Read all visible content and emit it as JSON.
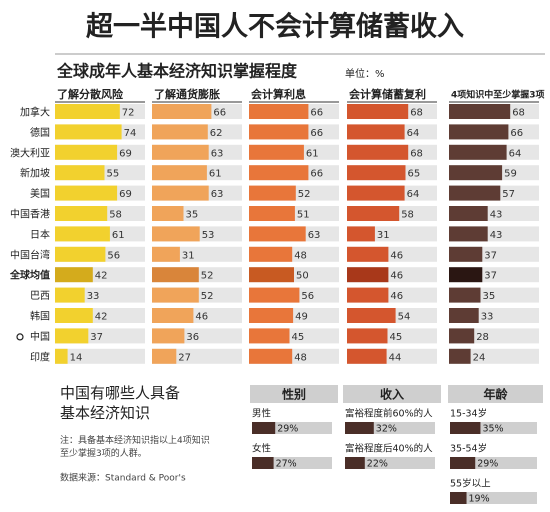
{
  "chart_data": [
    {
      "type": "bar",
      "title": "超一半中国人不会计算储蓄收入",
      "subtitle": "全球成年人基本经济知识掌握程度",
      "unit": "单位：%",
      "categories": [
        "加拿大",
        "德国",
        "澳大利亚",
        "新加坡",
        "美国",
        "中国香港",
        "日本",
        "中国台湾",
        "全球均值",
        "巴西",
        "韩国",
        "中国",
        "印度"
      ],
      "highlight": 8,
      "xlim": [
        0,
        100
      ],
      "track_color": "#e6e6e6",
      "series": [
        {
          "name": "了解分散风险",
          "color": "#f2d12e",
          "highlight_color": "#d4ab1c",
          "values": [
            72,
            74,
            69,
            55,
            69,
            58,
            61,
            56,
            42,
            33,
            42,
            37,
            14
          ]
        },
        {
          "name": "了解通货膨胀",
          "color": "#f0a45a",
          "highlight_color": "#d9853a",
          "values": [
            66,
            62,
            63,
            61,
            63,
            35,
            53,
            31,
            52,
            52,
            46,
            36,
            27
          ]
        },
        {
          "name": "会计算利息",
          "color": "#e8763a",
          "highlight_color": "#c85a22",
          "values": [
            66,
            66,
            61,
            66,
            52,
            51,
            63,
            48,
            50,
            56,
            49,
            45,
            48
          ]
        },
        {
          "name": "会计算储蓄复利",
          "color": "#d4562e",
          "highlight_color": "#a8381a",
          "values": [
            68,
            64,
            68,
            65,
            64,
            58,
            31,
            46,
            46,
            46,
            54,
            45,
            44
          ]
        },
        {
          "name": "4项知识中至少掌握3项",
          "color": "#5e3c34",
          "highlight_color": "#2a1612",
          "values": [
            68,
            66,
            64,
            59,
            57,
            43,
            43,
            37,
            37,
            35,
            33,
            28,
            24
          ]
        }
      ]
    },
    {
      "type": "bar",
      "title": "中国有哪些人具备基本经济知识",
      "note": "注：具备基本经济知识指以上4项知识至少掌握3项的人群。",
      "source": "数据来源：Standard & Poor's",
      "xlim": [
        0,
        100
      ],
      "color": "#4a2e28",
      "track_color": "#cfcfcf",
      "groups": [
        {
          "name": "性别",
          "categories": [
            "男性",
            "女性"
          ],
          "values": [
            29,
            27
          ],
          "value_labels": [
            "29%",
            "27%"
          ]
        },
        {
          "name": "收入",
          "categories": [
            "富裕程度前60%的人",
            "富裕程度后40%的人"
          ],
          "values": [
            32,
            22
          ],
          "value_labels": [
            "32%",
            "22%"
          ]
        },
        {
          "name": "年龄",
          "categories": [
            "15-34岁",
            "35-54岁",
            "55岁以上"
          ],
          "values": [
            35,
            29,
            19
          ],
          "value_labels": [
            "35%",
            "29%",
            "19%"
          ]
        }
      ]
    }
  ]
}
